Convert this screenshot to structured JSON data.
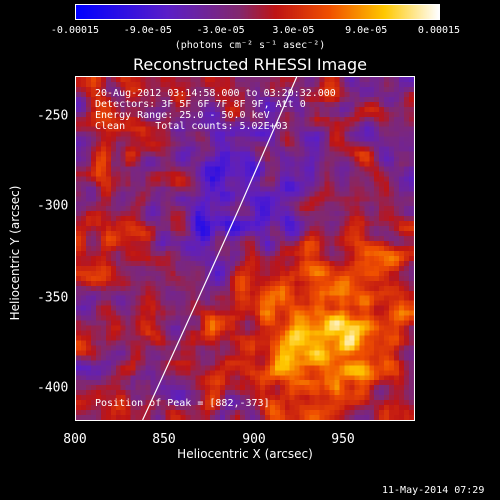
{
  "colorbar": {
    "tick_labels": [
      "-0.00015",
      "-9.0e-05",
      "-3.0e-05",
      "3.0e-05",
      "9.0e-05",
      "0.00015"
    ],
    "units": "(photons cm⁻² s⁻¹ asec⁻²)",
    "range": [
      -0.00015,
      0.00015
    ],
    "colormap": "blue-purple-red-yellow-white"
  },
  "title": "Reconstructed RHESSI Image",
  "info": {
    "time_range": "20-Aug-2012 03:14:58.000 to 03:20:32.000",
    "detectors": "Detectors: 3F 5F 6F 7F 8F 9F, Att 0",
    "energy": "Energy Range: 25.0 - 50.0 keV",
    "clean": "Clean     Total counts: 5.02E+03",
    "peak": "Position of Peak = [882,-373]"
  },
  "axes": {
    "xlabel": "Heliocentric X (arcsec)",
    "ylabel": "Heliocentric Y (arcsec)",
    "xticks": [
      "800",
      "850",
      "900",
      "950"
    ],
    "yticks": [
      "-250",
      "-300",
      "-350",
      "-400"
    ],
    "xlim": [
      800,
      990
    ],
    "ylim": [
      -420,
      -227
    ]
  },
  "footer": "11-May-2014 07:29",
  "colors": {
    "background": "#000000",
    "limb": "#ffffff"
  }
}
